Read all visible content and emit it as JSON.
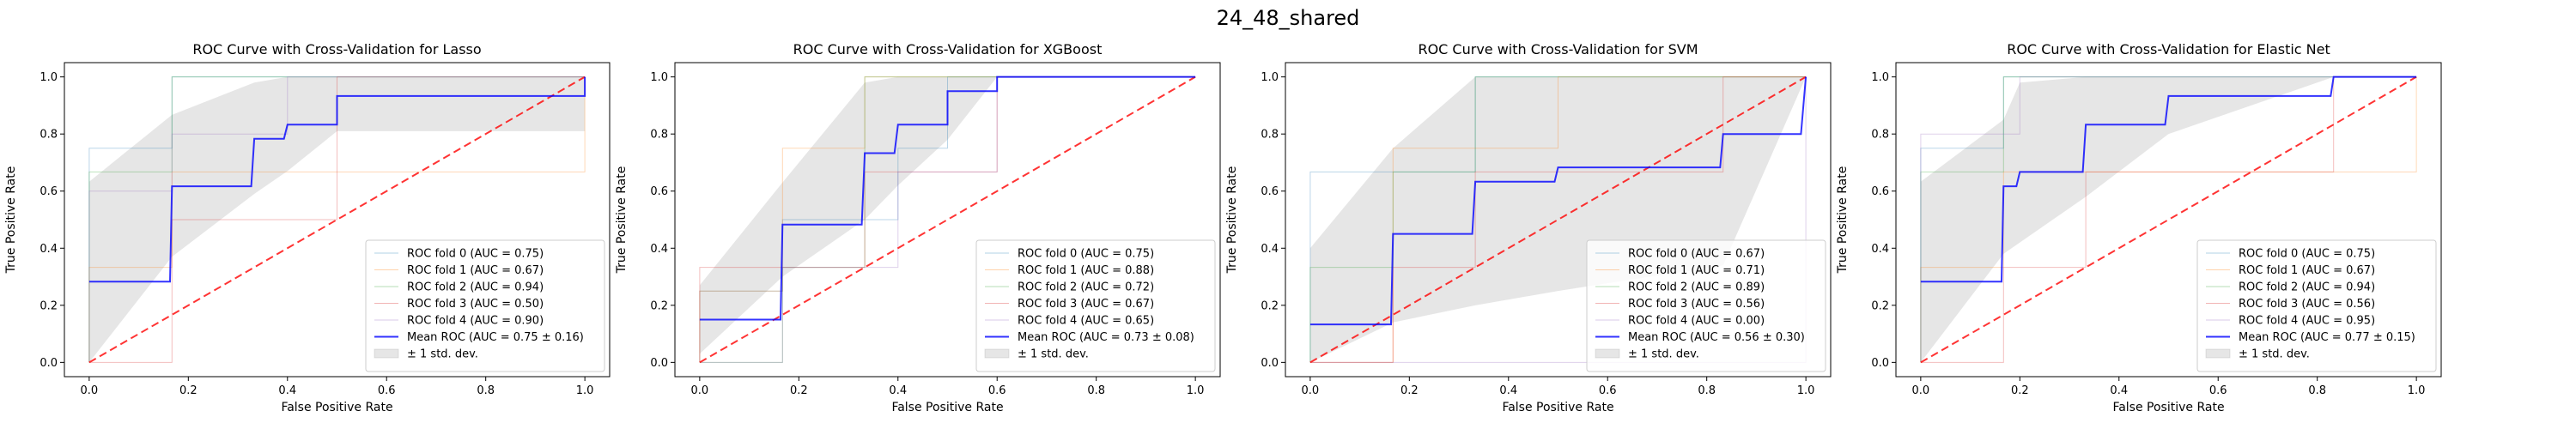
{
  "figure": {
    "suptitle": "24_48_shared"
  },
  "chart_data": [
    {
      "type": "line",
      "title": "ROC Curve with Cross-Validation for Lasso",
      "xlabel": "False Positive Rate",
      "ylabel": "True Positive Rate",
      "xlim": [
        -0.05,
        1.05
      ],
      "ylim": [
        -0.05,
        1.05
      ],
      "xticks": [
        "0.0",
        "0.2",
        "0.4",
        "0.6",
        "0.8",
        "1.0"
      ],
      "yticks": [
        "0.0",
        "0.2",
        "0.4",
        "0.6",
        "0.8",
        "1.0"
      ],
      "legend_position": "lower-right",
      "folds": [
        {
          "name": "ROC fold 0 (AUC = 0.75)",
          "color": "#1f77b4",
          "x": [
            0,
            0,
            0.167,
            0.167,
            0.5,
            0.5,
            1
          ],
          "y": [
            0,
            0.75,
            0.75,
            1,
            1,
            1,
            1
          ]
        },
        {
          "name": "ROC fold 1 (AUC = 0.67)",
          "color": "#ff7f0e",
          "x": [
            0,
            0,
            0.167,
            0.167,
            0.5,
            0.5,
            1,
            1
          ],
          "y": [
            0,
            0.333,
            0.333,
            0.667,
            0.667,
            0.667,
            0.667,
            1
          ]
        },
        {
          "name": "ROC fold 2 (AUC = 0.94)",
          "color": "#2ca02c",
          "x": [
            0,
            0,
            0.167,
            0.167,
            0.333,
            0.333,
            1
          ],
          "y": [
            0,
            0.667,
            0.667,
            1,
            1,
            1,
            1
          ]
        },
        {
          "name": "ROC fold 3 (AUC = 0.50)",
          "color": "#d62728",
          "x": [
            0,
            0.167,
            0.167,
            0.333,
            0.333,
            0.5,
            0.5,
            1
          ],
          "y": [
            0,
            0,
            0.5,
            0.5,
            0.5,
            0.5,
            1,
            1
          ]
        },
        {
          "name": "ROC fold 4 (AUC = 0.90)",
          "color": "#9467bd",
          "x": [
            0,
            0,
            0.167,
            0.167,
            0.4,
            0.4,
            1
          ],
          "y": [
            0,
            0.6,
            0.6,
            0.8,
            0.8,
            1,
            1
          ]
        }
      ],
      "mean": {
        "name": "Mean ROC (AUC = 0.75 ± 0.16)",
        "color": "#0000ff",
        "x": [
          0,
          0.163,
          0.167,
          0.327,
          0.333,
          0.393,
          0.4,
          0.5,
          0.5,
          1,
          1
        ],
        "y": [
          0.283,
          0.283,
          0.617,
          0.617,
          0.783,
          0.783,
          0.833,
          0.833,
          0.933,
          0.933,
          1.0
        ]
      },
      "band": {
        "name": "± 1 std. dev.",
        "x": [
          0,
          0.167,
          0.333,
          0.4,
          0.5,
          1
        ],
        "upper": [
          0.633,
          0.867,
          0.98,
          1.0,
          1.0,
          1.0
        ],
        "lower": [
          0,
          0.37,
          0.59,
          0.67,
          0.81,
          0.81
        ]
      },
      "chance": {
        "x": [
          0,
          1
        ],
        "y": [
          0,
          1
        ],
        "color": "#ff0000"
      }
    },
    {
      "type": "line",
      "title": "ROC Curve with Cross-Validation for XGBoost",
      "xlabel": "False Positive Rate",
      "ylabel": "True Positive Rate",
      "xlim": [
        -0.05,
        1.05
      ],
      "ylim": [
        -0.05,
        1.05
      ],
      "xticks": [
        "0.0",
        "0.2",
        "0.4",
        "0.6",
        "0.8",
        "1.0"
      ],
      "yticks": [
        "0.0",
        "0.2",
        "0.4",
        "0.6",
        "0.8",
        "1.0"
      ],
      "legend_position": "lower-right",
      "folds": [
        {
          "name": "ROC fold 0 (AUC = 0.75)",
          "color": "#1f77b4",
          "x": [
            0,
            0,
            0.167,
            0.167,
            0.4,
            0.4,
            0.5,
            0.5,
            1
          ],
          "y": [
            0,
            0.25,
            0.25,
            0.5,
            0.5,
            0.75,
            0.75,
            1,
            1
          ]
        },
        {
          "name": "ROC fold 1 (AUC = 0.88)",
          "color": "#ff7f0e",
          "x": [
            0,
            0,
            0.167,
            0.167,
            0.333,
            0.333,
            1
          ],
          "y": [
            0,
            0.25,
            0.25,
            0.75,
            0.75,
            1,
            1
          ]
        },
        {
          "name": "ROC fold 2 (AUC = 0.72)",
          "color": "#2ca02c",
          "x": [
            0,
            0.167,
            0.167,
            0.333,
            0.333,
            0.5,
            0.5,
            1
          ],
          "y": [
            0,
            0,
            0.333,
            0.333,
            1,
            1,
            1,
            1
          ]
        },
        {
          "name": "ROC fold 3 (AUC = 0.67)",
          "color": "#d62728",
          "x": [
            0,
            0,
            0.333,
            0.333,
            0.6,
            0.6,
            1
          ],
          "y": [
            0,
            0.333,
            0.333,
            0.667,
            0.667,
            1,
            1
          ]
        },
        {
          "name": "ROC fold 4 (AUC = 0.65)",
          "color": "#9467bd",
          "x": [
            0,
            0.167,
            0.167,
            0.4,
            0.4,
            0.6,
            0.6,
            1
          ],
          "y": [
            0,
            0,
            0.333,
            0.333,
            0.667,
            0.667,
            1,
            1
          ]
        }
      ],
      "mean": {
        "name": "Mean ROC (AUC = 0.73 ± 0.08)",
        "color": "#0000ff",
        "x": [
          0,
          0.163,
          0.167,
          0.327,
          0.333,
          0.393,
          0.4,
          0.5,
          0.5,
          0.6,
          0.6,
          1
        ],
        "y": [
          0.15,
          0.15,
          0.483,
          0.483,
          0.733,
          0.733,
          0.833,
          0.833,
          0.95,
          0.95,
          1.0,
          1.0
        ]
      },
      "band": {
        "name": "± 1 std. dev.",
        "x": [
          0,
          0.167,
          0.333,
          0.4,
          0.5,
          0.6,
          1
        ],
        "upper": [
          0.27,
          0.63,
          0.98,
          1.0,
          1.0,
          1.0,
          1.0
        ],
        "lower": [
          0.03,
          0.3,
          0.5,
          0.62,
          0.78,
          1.0,
          1.0
        ]
      },
      "chance": {
        "x": [
          0,
          1
        ],
        "y": [
          0,
          1
        ],
        "color": "#ff0000"
      }
    },
    {
      "type": "line",
      "title": "ROC Curve with Cross-Validation for SVM",
      "xlabel": "False Positive Rate",
      "ylabel": "True Positive Rate",
      "xlim": [
        -0.05,
        1.05
      ],
      "ylim": [
        -0.05,
        1.05
      ],
      "xticks": [
        "0.0",
        "0.2",
        "0.4",
        "0.6",
        "0.8",
        "1.0"
      ],
      "yticks": [
        "0.0",
        "0.2",
        "0.4",
        "0.6",
        "0.8",
        "1.0"
      ],
      "legend_position": "lower-right",
      "folds": [
        {
          "name": "ROC fold 0 (AUC = 0.67)",
          "color": "#1f77b4",
          "x": [
            0,
            0,
            0.167,
            0.167,
            0.333,
            0.333,
            1
          ],
          "y": [
            0,
            0.667,
            0.667,
            0.667,
            0.667,
            1,
            1
          ]
        },
        {
          "name": "ROC fold 1 (AUC = 0.71)",
          "color": "#ff7f0e",
          "x": [
            0,
            0.167,
            0.167,
            0.5,
            0.5,
            0.833,
            0.833,
            1
          ],
          "y": [
            0,
            0,
            0.75,
            0.75,
            1,
            1,
            1,
            1
          ]
        },
        {
          "name": "ROC fold 2 (AUC = 0.89)",
          "color": "#2ca02c",
          "x": [
            0,
            0,
            0.167,
            0.167,
            0.333,
            0.333,
            1
          ],
          "y": [
            0,
            0.333,
            0.333,
            0.667,
            0.667,
            1,
            1
          ]
        },
        {
          "name": "ROC fold 3 (AUC = 0.56)",
          "color": "#d62728",
          "x": [
            0,
            0.167,
            0.167,
            0.333,
            0.333,
            0.833,
            0.833,
            1
          ],
          "y": [
            0,
            0,
            0.333,
            0.333,
            0.667,
            0.667,
            1,
            1
          ]
        },
        {
          "name": "ROC fold 4 (AUC = 0.00)",
          "color": "#9467bd",
          "x": [
            0,
            1,
            1
          ],
          "y": [
            0,
            0,
            1
          ]
        }
      ],
      "mean": {
        "name": "Mean ROC (AUC = 0.56 ± 0.30)",
        "color": "#0000ff",
        "x": [
          0,
          0.163,
          0.167,
          0.327,
          0.333,
          0.493,
          0.5,
          0.827,
          0.833,
          0.99,
          1
        ],
        "y": [
          0.133,
          0.133,
          0.45,
          0.45,
          0.633,
          0.633,
          0.683,
          0.683,
          0.8,
          0.8,
          1.0
        ]
      },
      "band": {
        "name": "± 1 std. dev.",
        "x": [
          0,
          0.167,
          0.333,
          0.5,
          0.833,
          1
        ],
        "upper": [
          0.4,
          0.75,
          1.0,
          1.0,
          1.0,
          1.0
        ],
        "lower": [
          0,
          0.14,
          0.2,
          0.25,
          0.34,
          1.0
        ]
      },
      "chance": {
        "x": [
          0,
          1
        ],
        "y": [
          0,
          1
        ],
        "color": "#ff0000"
      }
    },
    {
      "type": "line",
      "title": "ROC Curve with Cross-Validation for Elastic Net",
      "xlabel": "False Positive Rate",
      "ylabel": "True Positive Rate",
      "xlim": [
        -0.05,
        1.05
      ],
      "ylim": [
        -0.05,
        1.05
      ],
      "xticks": [
        "0.0",
        "0.2",
        "0.4",
        "0.6",
        "0.8",
        "1.0"
      ],
      "yticks": [
        "0.0",
        "0.2",
        "0.4",
        "0.6",
        "0.8",
        "1.0"
      ],
      "legend_position": "lower-right",
      "folds": [
        {
          "name": "ROC fold 0 (AUC = 0.75)",
          "color": "#1f77b4",
          "x": [
            0,
            0,
            0.167,
            0.167,
            0.5,
            0.5,
            1
          ],
          "y": [
            0,
            0.75,
            0.75,
            1,
            1,
            1,
            1
          ]
        },
        {
          "name": "ROC fold 1 (AUC = 0.67)",
          "color": "#ff7f0e",
          "x": [
            0,
            0,
            0.167,
            0.167,
            0.5,
            0.5,
            1,
            1
          ],
          "y": [
            0,
            0.333,
            0.333,
            0.667,
            0.667,
            0.667,
            0.667,
            1
          ]
        },
        {
          "name": "ROC fold 2 (AUC = 0.94)",
          "color": "#2ca02c",
          "x": [
            0,
            0,
            0.167,
            0.167,
            0.333,
            0.333,
            1
          ],
          "y": [
            0,
            0.667,
            0.667,
            1,
            1,
            1,
            1
          ]
        },
        {
          "name": "ROC fold 3 (AUC = 0.56)",
          "color": "#d62728",
          "x": [
            0,
            0.167,
            0.167,
            0.333,
            0.333,
            0.833,
            0.833,
            1
          ],
          "y": [
            0,
            0,
            0.333,
            0.333,
            0.667,
            0.667,
            1,
            1
          ]
        },
        {
          "name": "ROC fold 4 (AUC = 0.95)",
          "color": "#9467bd",
          "x": [
            0,
            0,
            0.2,
            0.2,
            1
          ],
          "y": [
            0,
            0.8,
            0.8,
            1,
            1
          ]
        }
      ],
      "mean": {
        "name": "Mean ROC (AUC = 0.77 ± 0.15)",
        "color": "#0000ff",
        "x": [
          0,
          0.163,
          0.167,
          0.193,
          0.2,
          0.327,
          0.333,
          0.493,
          0.5,
          0.827,
          0.833,
          1
        ],
        "y": [
          0.283,
          0.283,
          0.617,
          0.617,
          0.667,
          0.667,
          0.833,
          0.833,
          0.933,
          0.933,
          1.0,
          1.0
        ]
      },
      "band": {
        "name": "± 1 std. dev.",
        "x": [
          0,
          0.167,
          0.2,
          0.333,
          0.5,
          0.833,
          1
        ],
        "upper": [
          0.633,
          0.85,
          0.98,
          1.0,
          1.0,
          1.0,
          1.0
        ],
        "lower": [
          0,
          0.38,
          0.42,
          0.58,
          0.8,
          1.0,
          1.0
        ]
      },
      "chance": {
        "x": [
          0,
          1
        ],
        "y": [
          0,
          1
        ],
        "color": "#ff0000"
      }
    }
  ]
}
